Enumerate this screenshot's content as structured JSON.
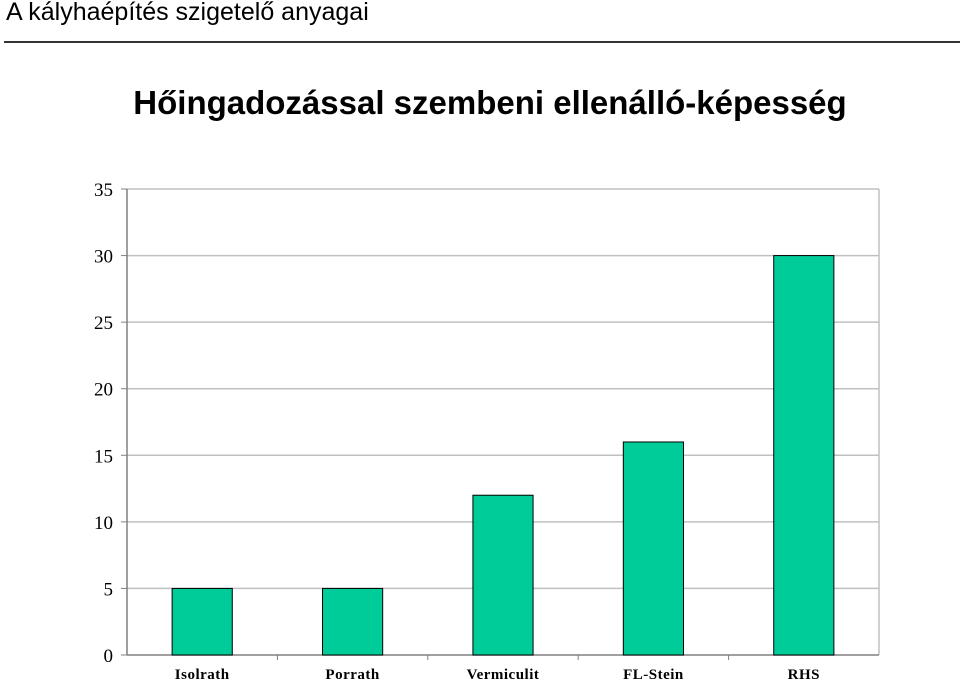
{
  "slide": {
    "title": "A kályhaépítés szigetelő anyagai"
  },
  "colors": {
    "bar": "#00cc99",
    "grid": "#c0c0c0",
    "axis": "#808080"
  },
  "chart_data": {
    "type": "bar",
    "title": "Hőingadozással szembeni ellenálló-képesség",
    "xlabel": "",
    "ylabel": "",
    "categories": [
      "Isolrath",
      "Porrath",
      "Vermiculit",
      "FL-Stein",
      "RHS"
    ],
    "values": [
      5,
      5,
      12,
      16,
      30
    ],
    "ylim": [
      0,
      35
    ],
    "yticks": [
      0,
      5,
      10,
      15,
      20,
      25,
      30,
      35
    ],
    "grid": true,
    "legend": "none"
  }
}
